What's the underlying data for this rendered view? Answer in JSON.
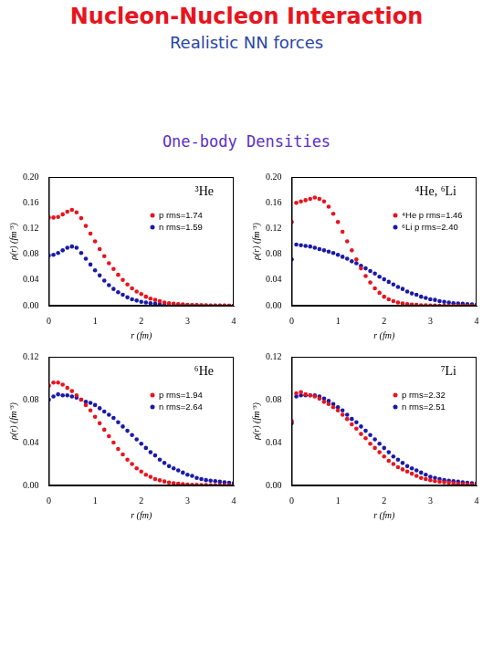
{
  "page": {
    "title": "Nucleon-Nucleon Interaction",
    "subtitle": "Realistic NN forces",
    "heading": "One-body Densities"
  },
  "chart_data": [
    {
      "type": "scatter",
      "title": "³He",
      "x_label": "r (fm)",
      "y_label": "ρ(r) (fm⁻³)",
      "xlim": [
        0,
        4
      ],
      "xticks": [
        0,
        1,
        2,
        3,
        4
      ],
      "ylim": [
        0,
        0.2
      ],
      "yticks": [
        {
          "value": 0,
          "label": "0.00"
        },
        {
          "value": 0.04,
          "label": "0.04"
        },
        {
          "value": 0.08,
          "label": "0.08"
        },
        {
          "value": 0.12,
          "label": "0.12"
        },
        {
          "value": 0.16,
          "label": "0.16"
        },
        {
          "value": 0.2,
          "label": "0.20"
        }
      ],
      "grid": false,
      "legend": "upper right",
      "marker": "circle",
      "x": [
        0,
        0.1,
        0.2,
        0.3,
        0.4,
        0.5,
        0.6,
        0.7,
        0.8,
        0.9,
        1.0,
        1.1,
        1.2,
        1.3,
        1.4,
        1.5,
        1.6,
        1.7,
        1.8,
        1.9,
        2.0,
        2.1,
        2.2,
        2.3,
        2.4,
        2.5,
        2.6,
        2.7,
        2.8,
        2.9,
        3.0,
        3.1,
        3.2,
        3.3,
        3.4,
        3.5,
        3.6,
        3.7,
        3.8,
        3.9,
        4.0
      ],
      "series": [
        {
          "name": "p rms=1.74",
          "color": "#e8141e",
          "values": [
            0.137,
            0.137,
            0.138,
            0.142,
            0.146,
            0.149,
            0.145,
            0.136,
            0.124,
            0.112,
            0.1,
            0.088,
            0.077,
            0.066,
            0.057,
            0.048,
            0.04,
            0.033,
            0.027,
            0.022,
            0.018,
            0.014,
            0.011,
            0.009,
            0.007,
            0.005,
            0.004,
            0.003,
            0.0025,
            0.002,
            0.0015,
            0.001,
            0.001,
            0.0007,
            0.0005,
            0.0004,
            0.0003,
            0.0002,
            0.0002,
            0.0001,
            0.0001
          ]
        },
        {
          "name": "n rms=1.59",
          "color": "#1a1aa8",
          "values": [
            0.078,
            0.079,
            0.082,
            0.086,
            0.09,
            0.092,
            0.09,
            0.082,
            0.073,
            0.064,
            0.055,
            0.047,
            0.039,
            0.032,
            0.026,
            0.021,
            0.017,
            0.013,
            0.01,
            0.008,
            0.006,
            0.005,
            0.004,
            0.003,
            0.002,
            0.0015,
            0.001,
            0.001,
            0.0007,
            0.0005,
            0.0004,
            0.0003,
            0.0002,
            0.0002,
            0.0001,
            0.0001,
            0.0001,
            0,
            0,
            0,
            0
          ]
        }
      ]
    },
    {
      "type": "scatter",
      "title": "⁴He, ⁶Li",
      "x_label": "r (fm)",
      "y_label": "ρ(r) (fm⁻³)",
      "xlim": [
        0,
        4
      ],
      "xticks": [
        0,
        1,
        2,
        3,
        4
      ],
      "ylim": [
        0,
        0.2
      ],
      "yticks": [
        {
          "value": 0,
          "label": "0.00"
        },
        {
          "value": 0.04,
          "label": "0.04"
        },
        {
          "value": 0.08,
          "label": "0.08"
        },
        {
          "value": 0.12,
          "label": "0.12"
        },
        {
          "value": 0.16,
          "label": "0.16"
        },
        {
          "value": 0.2,
          "label": "0.20"
        }
      ],
      "grid": false,
      "legend": "upper right",
      "marker": "circle",
      "x": [
        0,
        0.1,
        0.2,
        0.3,
        0.4,
        0.5,
        0.6,
        0.7,
        0.8,
        0.9,
        1.0,
        1.1,
        1.2,
        1.3,
        1.4,
        1.5,
        1.6,
        1.7,
        1.8,
        1.9,
        2.0,
        2.1,
        2.2,
        2.3,
        2.4,
        2.5,
        2.6,
        2.7,
        2.8,
        2.9,
        3.0,
        3.1,
        3.2,
        3.3,
        3.4,
        3.5,
        3.6,
        3.7,
        3.8,
        3.9,
        4.0
      ],
      "series": [
        {
          "name": "⁴He p rms=1.46",
          "color": "#e8141e",
          "values": [
            0.13,
            0.16,
            0.162,
            0.164,
            0.166,
            0.168,
            0.166,
            0.162,
            0.154,
            0.143,
            0.13,
            0.115,
            0.1,
            0.086,
            0.072,
            0.058,
            0.046,
            0.036,
            0.027,
            0.02,
            0.014,
            0.01,
            0.007,
            0.005,
            0.0035,
            0.0025,
            0.0018,
            0.0012,
            0.0008,
            0.0005,
            0.0003,
            0.0002,
            0.0001,
            0.0001,
            0,
            0,
            0,
            0,
            0,
            0,
            0
          ]
        },
        {
          "name": "⁶Li p rms=2.40",
          "color": "#1a1aa8",
          "values": [
            0.072,
            0.095,
            0.094,
            0.093,
            0.092,
            0.09,
            0.088,
            0.086,
            0.084,
            0.082,
            0.079,
            0.076,
            0.073,
            0.069,
            0.066,
            0.062,
            0.058,
            0.054,
            0.05,
            0.045,
            0.041,
            0.037,
            0.033,
            0.029,
            0.026,
            0.022,
            0.019,
            0.017,
            0.014,
            0.012,
            0.01,
            0.009,
            0.007,
            0.006,
            0.005,
            0.004,
            0.0035,
            0.003,
            0.0025,
            0.002,
            0.0015
          ]
        }
      ]
    },
    {
      "type": "scatter",
      "title": "⁶He",
      "x_label": "r (fm)",
      "y_label": "ρ(r) (fm⁻³)",
      "xlim": [
        0,
        4
      ],
      "xticks": [
        0,
        1,
        2,
        3,
        4
      ],
      "ylim": [
        0,
        0.12
      ],
      "yticks": [
        {
          "value": 0,
          "label": "0.00"
        },
        {
          "value": 0.04,
          "label": "0.04"
        },
        {
          "value": 0.08,
          "label": "0.08"
        },
        {
          "value": 0.12,
          "label": "0.12"
        }
      ],
      "grid": false,
      "legend": "upper right",
      "marker": "circle",
      "x": [
        0,
        0.1,
        0.2,
        0.3,
        0.4,
        0.5,
        0.6,
        0.7,
        0.8,
        0.9,
        1.0,
        1.1,
        1.2,
        1.3,
        1.4,
        1.5,
        1.6,
        1.7,
        1.8,
        1.9,
        2.0,
        2.1,
        2.2,
        2.3,
        2.4,
        2.5,
        2.6,
        2.7,
        2.8,
        2.9,
        3.0,
        3.1,
        3.2,
        3.3,
        3.4,
        3.5,
        3.6,
        3.7,
        3.8,
        3.9,
        4.0
      ],
      "series": [
        {
          "name": "p rms=1.94",
          "color": "#e8141e",
          "values": [
            0.093,
            0.096,
            0.096,
            0.094,
            0.091,
            0.088,
            0.084,
            0.08,
            0.075,
            0.07,
            0.064,
            0.058,
            0.052,
            0.046,
            0.04,
            0.034,
            0.029,
            0.024,
            0.02,
            0.016,
            0.013,
            0.01,
            0.008,
            0.006,
            0.0048,
            0.0037,
            0.0028,
            0.0021,
            0.0016,
            0.0012,
            0.0009,
            0.0007,
            0.0005,
            0.0004,
            0.0003,
            0.0002,
            0.0002,
            0.0001,
            0.0001,
            0.0001,
            0
          ]
        },
        {
          "name": "n rms=2.64",
          "color": "#1a1aa8",
          "values": [
            0.08,
            0.083,
            0.085,
            0.084,
            0.084,
            0.083,
            0.082,
            0.08,
            0.078,
            0.077,
            0.075,
            0.072,
            0.069,
            0.066,
            0.063,
            0.059,
            0.055,
            0.051,
            0.047,
            0.043,
            0.039,
            0.035,
            0.031,
            0.028,
            0.024,
            0.021,
            0.018,
            0.016,
            0.014,
            0.012,
            0.01,
            0.009,
            0.007,
            0.006,
            0.005,
            0.0045,
            0.004,
            0.0035,
            0.003,
            0.0025,
            0.002
          ]
        }
      ]
    },
    {
      "type": "scatter",
      "title": "⁷Li",
      "x_label": "r (fm)",
      "y_label": "ρ(r) (fm⁻³)",
      "xlim": [
        0,
        4
      ],
      "xticks": [
        0,
        1,
        2,
        3,
        4
      ],
      "ylim": [
        0,
        0.12
      ],
      "yticks": [
        {
          "value": 0,
          "label": "0.00"
        },
        {
          "value": 0.04,
          "label": "0.04"
        },
        {
          "value": 0.08,
          "label": "0.08"
        },
        {
          "value": 0.12,
          "label": "0.12"
        }
      ],
      "grid": false,
      "legend": "upper right",
      "marker": "circle",
      "x": [
        0,
        0.1,
        0.2,
        0.3,
        0.4,
        0.5,
        0.6,
        0.7,
        0.8,
        0.9,
        1.0,
        1.1,
        1.2,
        1.3,
        1.4,
        1.5,
        1.6,
        1.7,
        1.8,
        1.9,
        2.0,
        2.1,
        2.2,
        2.3,
        2.4,
        2.5,
        2.6,
        2.7,
        2.8,
        2.9,
        3.0,
        3.1,
        3.2,
        3.3,
        3.4,
        3.5,
        3.6,
        3.7,
        3.8,
        3.9,
        4.0
      ],
      "series": [
        {
          "name": "p rms=2.32",
          "color": "#e8141e",
          "values": [
            0.06,
            0.086,
            0.087,
            0.085,
            0.084,
            0.083,
            0.081,
            0.078,
            0.076,
            0.073,
            0.07,
            0.066,
            0.062,
            0.057,
            0.053,
            0.048,
            0.044,
            0.039,
            0.035,
            0.031,
            0.027,
            0.023,
            0.02,
            0.017,
            0.015,
            0.013,
            0.011,
            0.009,
            0.007,
            0.006,
            0.005,
            0.004,
            0.0035,
            0.003,
            0.0025,
            0.002,
            0.0015,
            0.0012,
            0.001,
            0.0008,
            0.0006
          ]
        },
        {
          "name": "n rms=2.51",
          "color": "#1a1aa8",
          "values": [
            0.058,
            0.083,
            0.084,
            0.084,
            0.084,
            0.084,
            0.083,
            0.081,
            0.079,
            0.076,
            0.073,
            0.07,
            0.066,
            0.062,
            0.059,
            0.055,
            0.051,
            0.047,
            0.043,
            0.039,
            0.035,
            0.031,
            0.027,
            0.024,
            0.021,
            0.018,
            0.016,
            0.014,
            0.012,
            0.01,
            0.008,
            0.007,
            0.006,
            0.005,
            0.0045,
            0.004,
            0.0035,
            0.003,
            0.0025,
            0.002,
            0.0018
          ]
        }
      ]
    }
  ]
}
